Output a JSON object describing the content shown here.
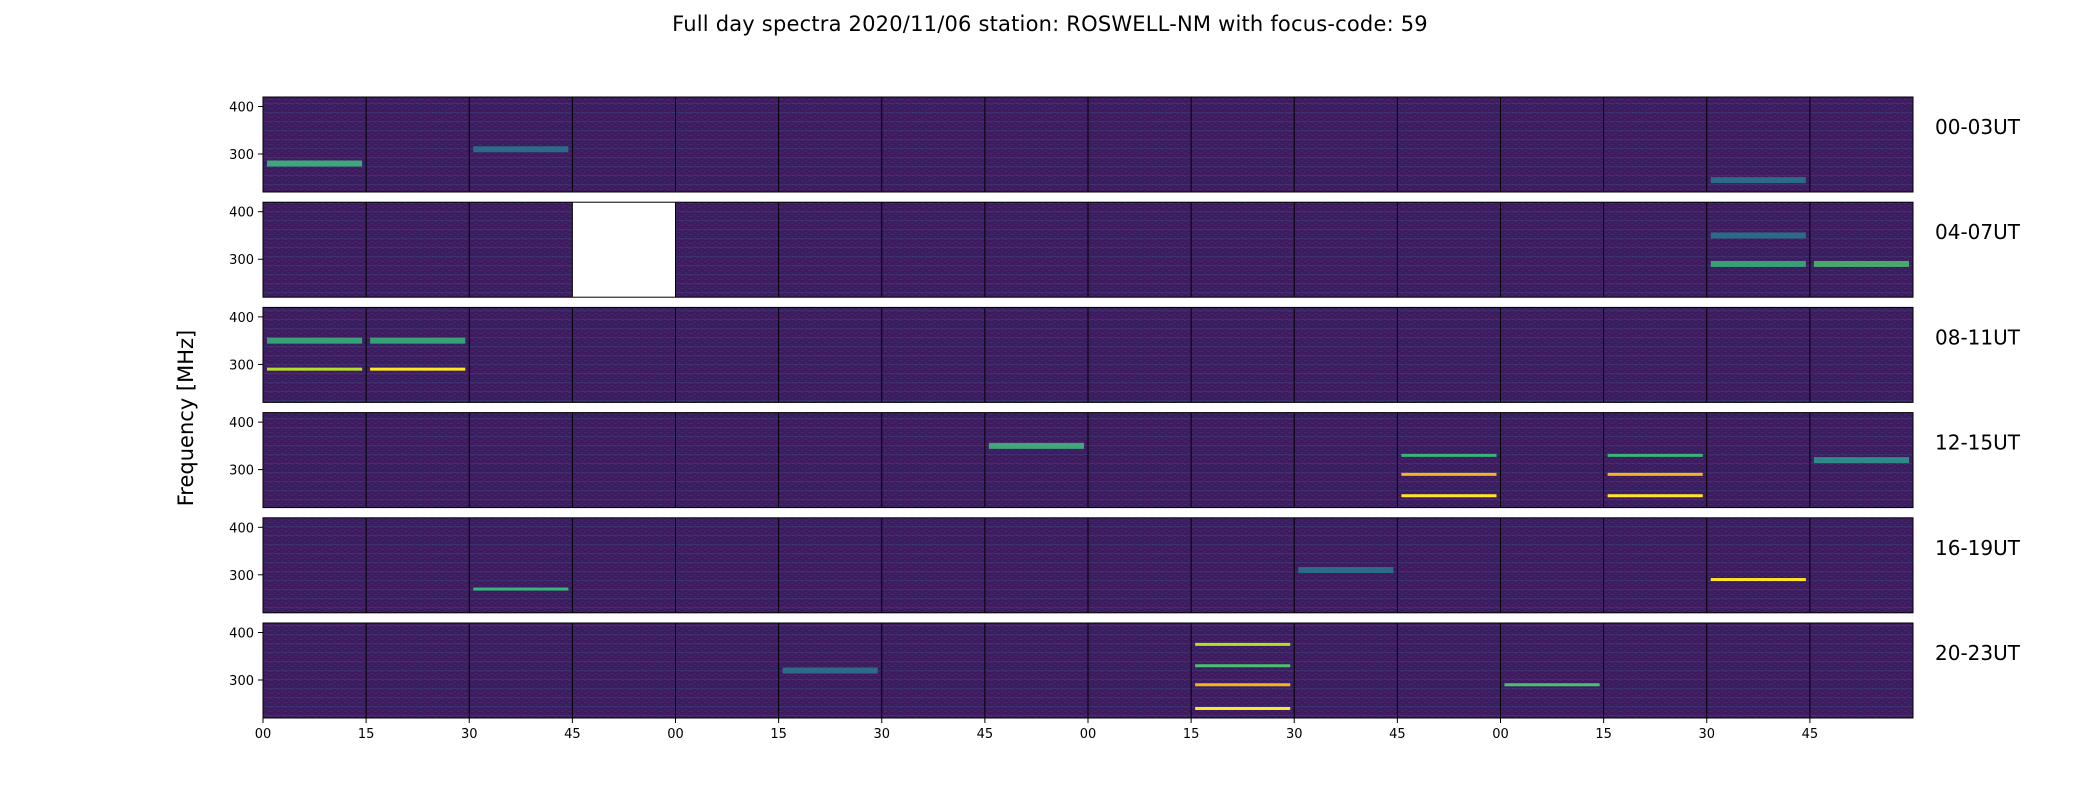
{
  "chart_data": {
    "type": "heatmap",
    "title": "Full day spectra 2020/11/06 station: ROSWELL-NM with focus-code: 59",
    "ylabel": "Frequency [MHz]",
    "xlabel": "",
    "colormap": "viridis",
    "y_ticks": [
      "400",
      "300"
    ],
    "x_tick_labels": [
      "00",
      "15",
      "30",
      "45",
      "00",
      "15",
      "30",
      "45",
      "00",
      "15",
      "30",
      "45",
      "00",
      "15",
      "30",
      "45"
    ],
    "ylim": [
      220,
      420
    ],
    "panels_per_row": 16,
    "rows": [
      {
        "label": "00-03UT",
        "missing_panels": []
      },
      {
        "label": "04-07UT",
        "missing_panels": [
          3
        ]
      },
      {
        "label": "08-11UT",
        "missing_panels": []
      },
      {
        "label": "12-15UT",
        "missing_panels": []
      },
      {
        "label": "16-19UT",
        "missing_panels": []
      },
      {
        "label": "20-23UT",
        "missing_panels": []
      }
    ],
    "background_color": "#3d1c5e",
    "features": [
      {
        "row": 0,
        "panel": 0,
        "freq": 280,
        "color": "#3fbf7f",
        "kind": "band"
      },
      {
        "row": 0,
        "panel": 2,
        "freq": 310,
        "color": "#2a788e",
        "kind": "band"
      },
      {
        "row": 0,
        "panel": 14,
        "freq": 245,
        "color": "#2a788e",
        "kind": "band"
      },
      {
        "row": 1,
        "panel": 14,
        "freq": 290,
        "color": "#35b779",
        "kind": "band"
      },
      {
        "row": 1,
        "panel": 15,
        "freq": 290,
        "color": "#4ac16d",
        "kind": "band"
      },
      {
        "row": 1,
        "panel": 14,
        "freq": 350,
        "color": "#2a788e",
        "kind": "band"
      },
      {
        "row": 2,
        "panel": 0,
        "freq": 350,
        "color": "#35b779",
        "kind": "band"
      },
      {
        "row": 2,
        "panel": 0,
        "freq": 290,
        "color": "#b5de2b",
        "kind": "line"
      },
      {
        "row": 2,
        "panel": 1,
        "freq": 350,
        "color": "#35b779",
        "kind": "band"
      },
      {
        "row": 2,
        "panel": 1,
        "freq": 290,
        "color": "#fde725",
        "kind": "line"
      },
      {
        "row": 3,
        "panel": 7,
        "freq": 350,
        "color": "#3fbf7f",
        "kind": "band"
      },
      {
        "row": 3,
        "panel": 11,
        "freq": 330,
        "color": "#35b779",
        "kind": "line"
      },
      {
        "row": 3,
        "panel": 11,
        "freq": 290,
        "color": "#f5b51f",
        "kind": "line"
      },
      {
        "row": 3,
        "panel": 11,
        "freq": 245,
        "color": "#fde725",
        "kind": "line"
      },
      {
        "row": 3,
        "panel": 13,
        "freq": 330,
        "color": "#35b779",
        "kind": "line"
      },
      {
        "row": 3,
        "panel": 13,
        "freq": 290,
        "color": "#f5b51f",
        "kind": "line"
      },
      {
        "row": 3,
        "panel": 13,
        "freq": 245,
        "color": "#fde725",
        "kind": "line"
      },
      {
        "row": 3,
        "panel": 15,
        "freq": 320,
        "color": "#2a9d8f",
        "kind": "band"
      },
      {
        "row": 4,
        "panel": 2,
        "freq": 270,
        "color": "#35b779",
        "kind": "line"
      },
      {
        "row": 4,
        "panel": 10,
        "freq": 310,
        "color": "#2a788e",
        "kind": "band"
      },
      {
        "row": 4,
        "panel": 14,
        "freq": 290,
        "color": "#fde725",
        "kind": "line"
      },
      {
        "row": 5,
        "panel": 9,
        "freq": 375,
        "color": "#b5de2b",
        "kind": "line"
      },
      {
        "row": 5,
        "panel": 9,
        "freq": 330,
        "color": "#4ac16d",
        "kind": "line"
      },
      {
        "row": 5,
        "panel": 9,
        "freq": 290,
        "color": "#f5b51f",
        "kind": "line"
      },
      {
        "row": 5,
        "panel": 9,
        "freq": 240,
        "color": "#fde725",
        "kind": "line"
      },
      {
        "row": 5,
        "panel": 12,
        "freq": 290,
        "color": "#4ac16d",
        "kind": "line"
      },
      {
        "row": 5,
        "panel": 5,
        "freq": 320,
        "color": "#2a788e",
        "kind": "band"
      }
    ]
  }
}
